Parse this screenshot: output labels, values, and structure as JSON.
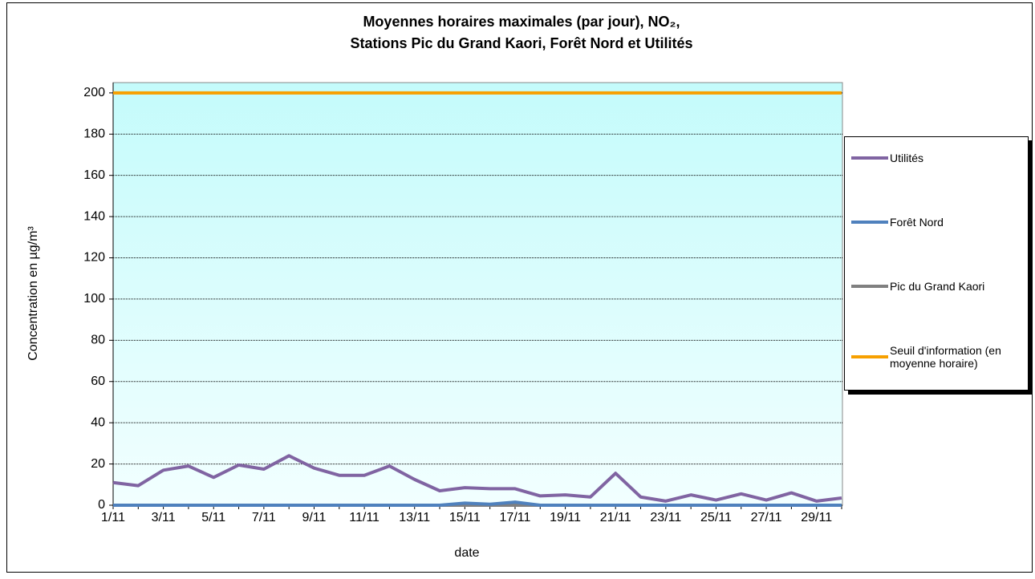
{
  "chart_data": {
    "type": "line",
    "title": "Moyennes horaires maximales (par jour), NO₂,",
    "subtitle": "Stations Pic du Grand Kaori, Forêt Nord et Utilités",
    "x_label": "date",
    "y_label": "Concentration en µg/m³",
    "categories": [
      "1/11",
      null,
      "3/11",
      null,
      "5/11",
      null,
      "7/11",
      null,
      "9/11",
      null,
      "11/11",
      null,
      "13/11",
      null,
      "15/11",
      null,
      "17/11",
      null,
      "19/11",
      null,
      "21/11",
      null,
      "23/11",
      null,
      "25/11",
      null,
      "27/11",
      null,
      "29/11",
      null
    ],
    "series": [
      {
        "name": "Utilités",
        "color": "#8064a2",
        "values": [
          11,
          9.5,
          17,
          19,
          13.5,
          19.5,
          17.5,
          24,
          18,
          14.5,
          14.5,
          19,
          12.5,
          7,
          8.5,
          8,
          8,
          4.5,
          5,
          4,
          15.5,
          4,
          2,
          5,
          2.5,
          5.5,
          2.5,
          6,
          2,
          3.5
        ]
      },
      {
        "name": "Forêt Nord",
        "color": "#4f81bd",
        "values": [
          0,
          0,
          0,
          0,
          0,
          0,
          0,
          0,
          0,
          0,
          0,
          0,
          0,
          0,
          1,
          0.5,
          1.5,
          0,
          0,
          0,
          0,
          0,
          0,
          0,
          0,
          0,
          0,
          0,
          0,
          0
        ]
      },
      {
        "name": "Pic du Grand Kaori",
        "color": "#808080",
        "values": [
          0,
          0,
          0,
          0,
          0,
          0,
          0,
          0,
          0,
          0,
          0,
          0,
          0,
          0,
          0,
          0,
          0,
          0,
          0,
          0,
          0,
          0,
          0,
          0,
          0,
          0,
          0,
          0,
          0,
          0
        ]
      },
      {
        "name": "Seuil d'information (en moyenne horaire)",
        "color": "#f7a000",
        "values": [
          200,
          200,
          200,
          200,
          200,
          200,
          200,
          200,
          200,
          200,
          200,
          200,
          200,
          200,
          200,
          200,
          200,
          200,
          200,
          200,
          200,
          200,
          200,
          200,
          200,
          200,
          200,
          200,
          200,
          200
        ]
      }
    ],
    "ylim": [
      0,
      205
    ],
    "yticks": [
      0,
      20,
      40,
      60,
      80,
      100,
      120,
      140,
      160,
      180,
      200
    ],
    "grid": true
  }
}
